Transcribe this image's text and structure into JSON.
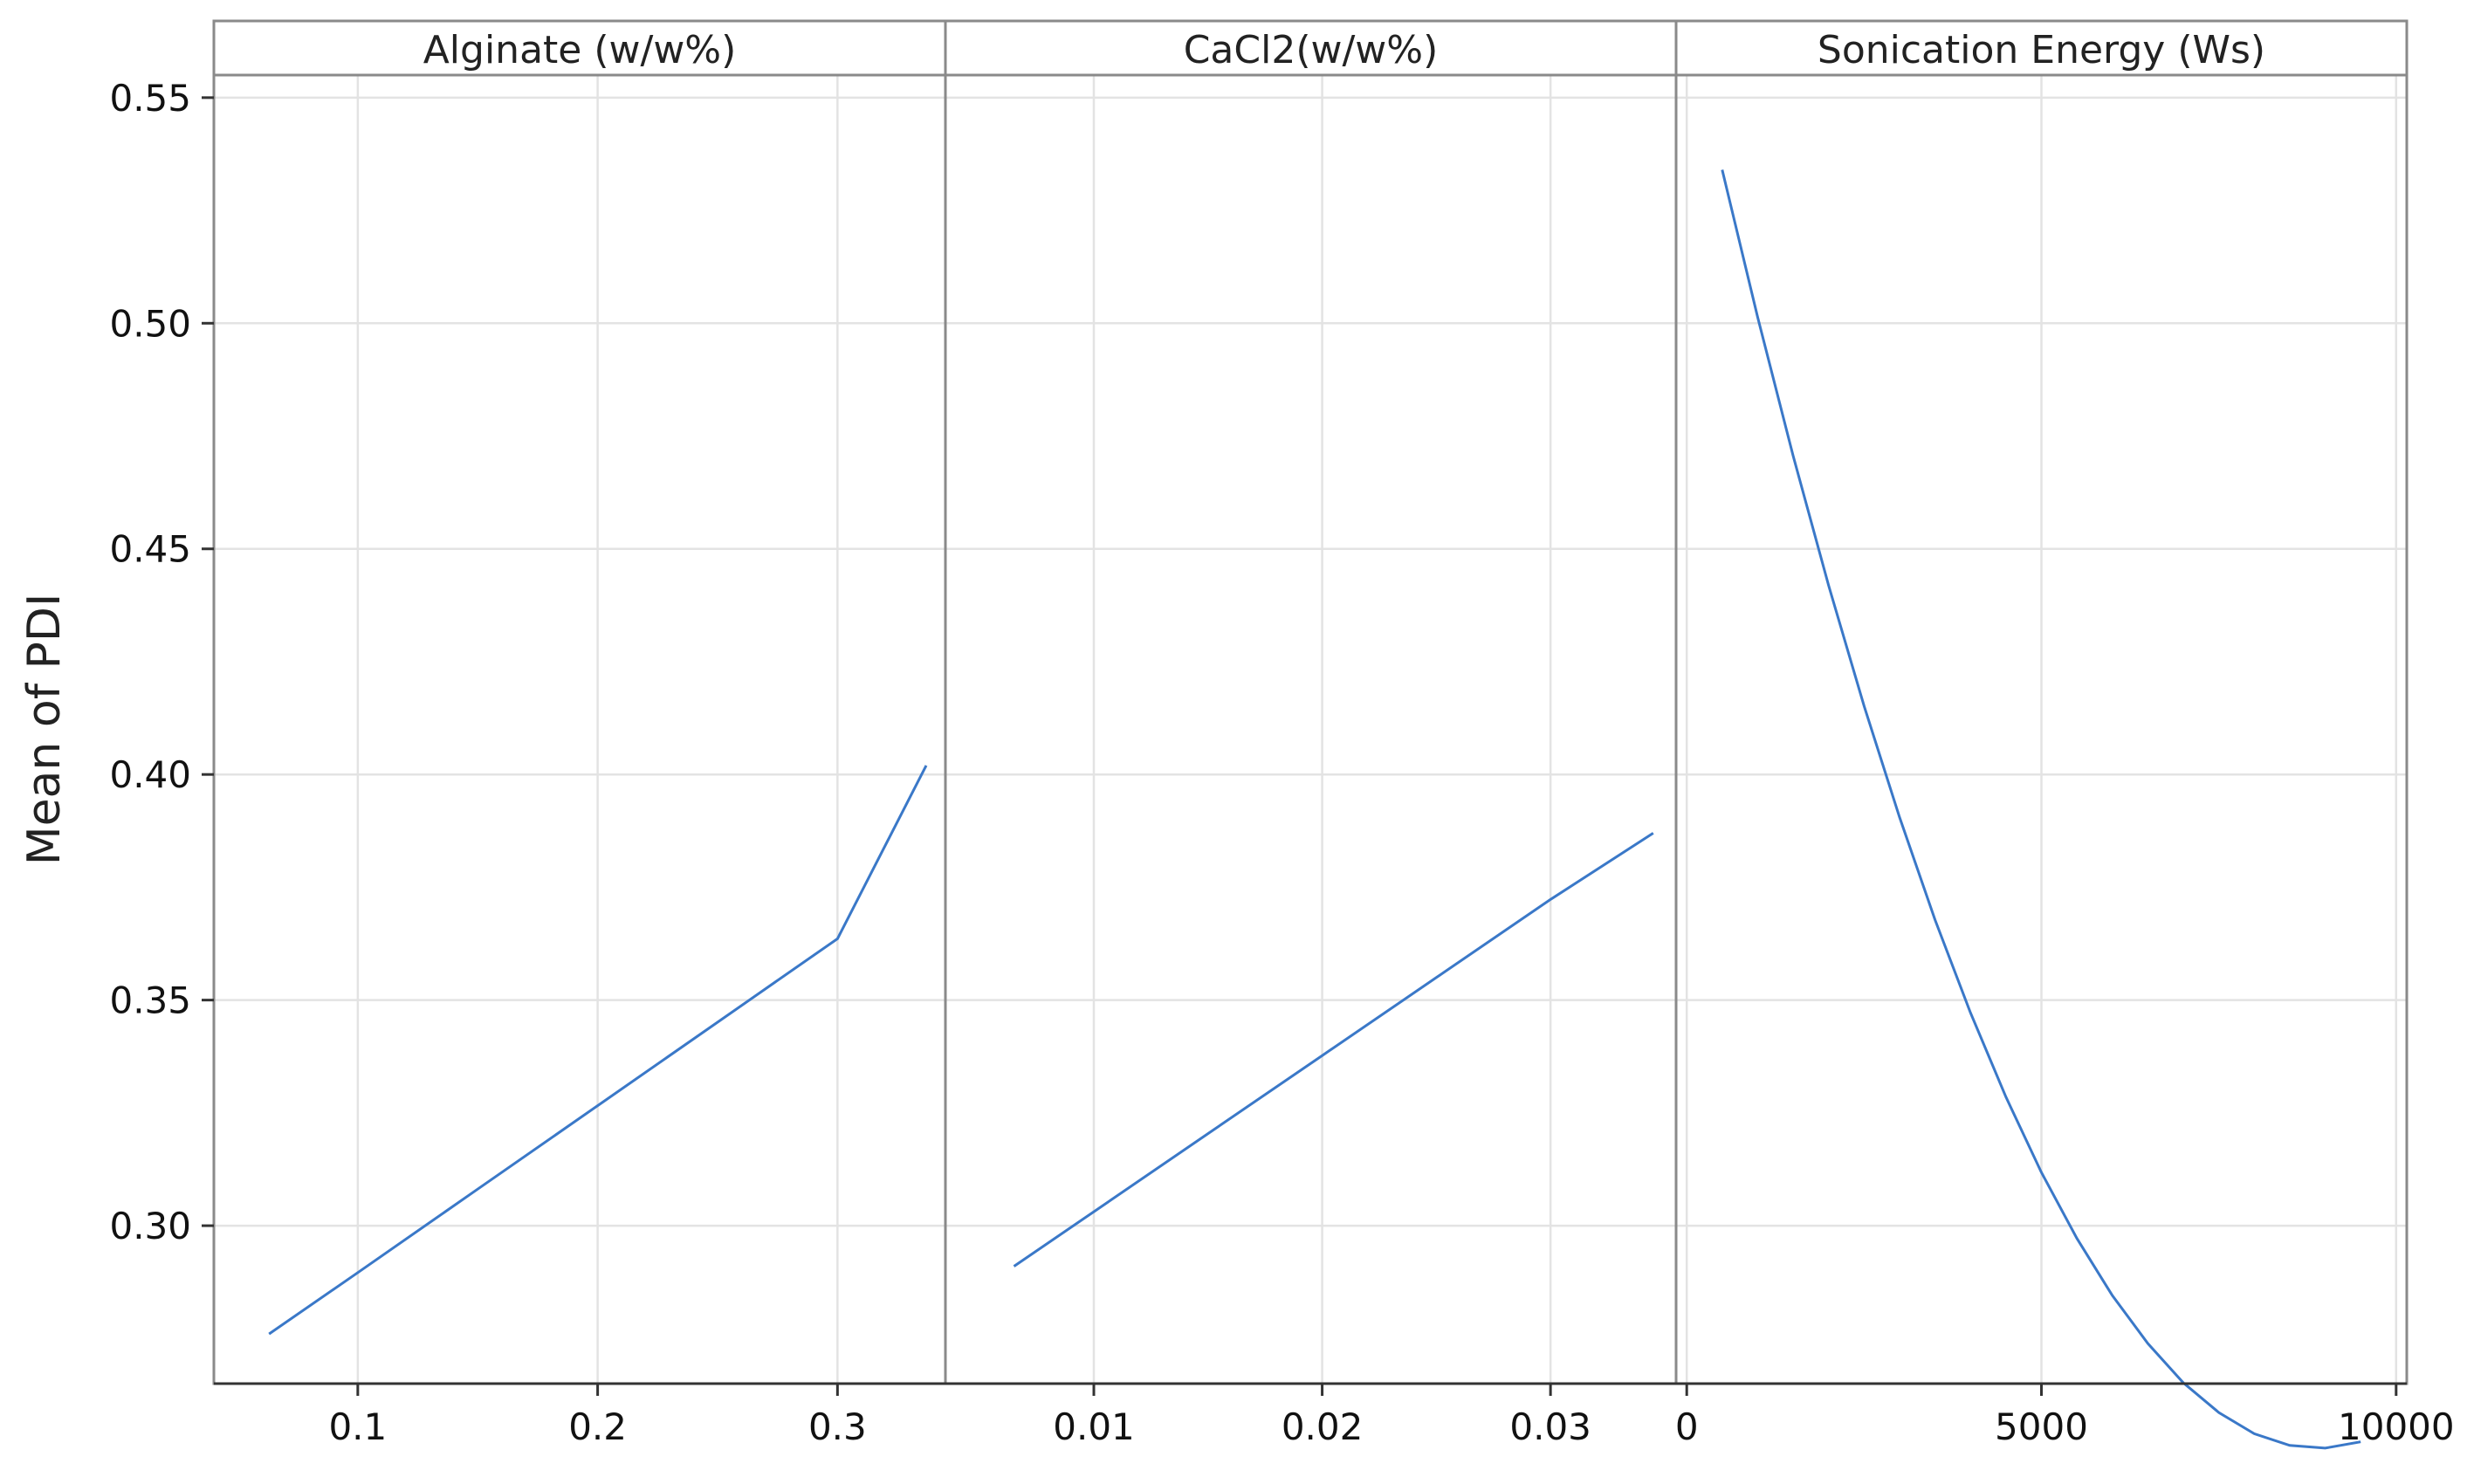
{
  "chart_data": {
    "type": "line",
    "ylabel": "Mean of PDI",
    "ylim": [
      0.265,
      0.555
    ],
    "yticks": [
      0.3,
      0.35,
      0.4,
      0.45,
      0.5,
      0.55
    ],
    "ytick_labels": [
      "0.30",
      "0.35",
      "0.40",
      "0.45",
      "0.50",
      "0.55"
    ],
    "grid": true,
    "line_color": "#3a78c8",
    "panels": [
      {
        "title": "Alginate (w/w%)",
        "xlim": [
          0.04,
          0.345
        ],
        "xticks": [
          0.1,
          0.2,
          0.3
        ],
        "xtick_labels": [
          "0.1",
          "0.2",
          "0.3"
        ],
        "x": [
          0.063,
          0.1,
          0.15,
          0.2,
          0.25,
          0.3,
          0.337
        ],
        "y": [
          0.276,
          0.2896,
          0.3081,
          0.3266,
          0.3451,
          0.3636,
          0.402
        ]
      },
      {
        "title": "CaCl2(w/w%)",
        "xlim": [
          0.0035,
          0.0355
        ],
        "xticks": [
          0.01,
          0.02,
          0.03
        ],
        "xtick_labels": [
          "0.01",
          "0.02",
          "0.03"
        ],
        "x": [
          0.0065,
          0.01,
          0.015,
          0.02,
          0.025,
          0.03,
          0.0345
        ],
        "y": [
          0.291,
          0.3031,
          0.3204,
          0.3377,
          0.355,
          0.3723,
          0.387
        ]
      },
      {
        "title": "Sonication Energy (Ws)",
        "xlim": [
          -150,
          10150
        ],
        "xticks": [
          0,
          5000,
          10000
        ],
        "xtick_labels": [
          "0",
          "5000",
          "10000"
        ],
        "x": [
          500,
          1000,
          1500,
          2000,
          2500,
          3000,
          3500,
          4000,
          4500,
          5000,
          5500,
          6000,
          6500,
          7000,
          7500,
          8000,
          8500,
          9000,
          9500
        ],
        "y": [
          0.534,
          0.5013,
          0.4706,
          0.4419,
          0.4152,
          0.3905,
          0.3678,
          0.3472,
          0.3285,
          0.3118,
          0.2972,
          0.2845,
          0.2739,
          0.2652,
          0.2586,
          0.2539,
          0.2513,
          0.2507,
          0.2521
        ]
      }
    ]
  }
}
